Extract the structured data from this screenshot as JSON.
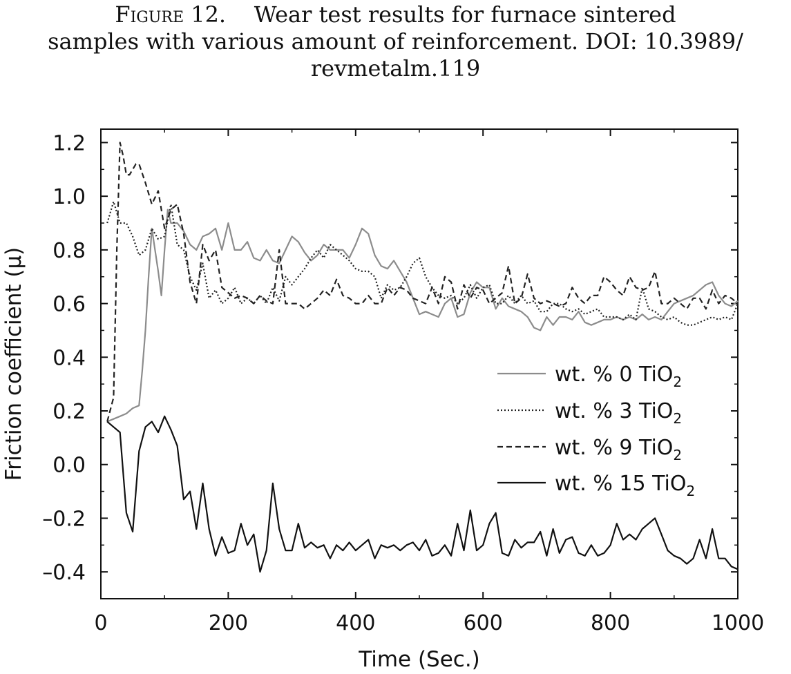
{
  "caption": {
    "label": "Figure 12.",
    "line1": "Wear test results for furnace sintered",
    "line2": "samples with various amount of reinforcement. DOI: 10.3989/",
    "line3": "revmetalm.119"
  },
  "chart_data": {
    "type": "line",
    "title": "",
    "xlabel": "Time (Sec.)",
    "ylabel": "Friction coefficient (µ)",
    "xlim": [
      0,
      1000
    ],
    "ylim": [
      -0.5,
      1.25
    ],
    "xticks": [
      0,
      200,
      400,
      600,
      800,
      1000
    ],
    "xtick_labels": [
      "0",
      "200",
      "400",
      "600",
      "800",
      "1000"
    ],
    "yticks": [
      -0.4,
      -0.2,
      0.0,
      0.2,
      0.4,
      0.6,
      0.8,
      1.0,
      1.2
    ],
    "ytick_labels": [
      "–0.4",
      "–0.2",
      "0.0",
      "0.2",
      "0.4",
      "0.6",
      "0.8",
      "1.0",
      "1.2"
    ],
    "grid": false,
    "legend_position": "center-right",
    "series": [
      {
        "legend_text": "wt. % 0 TiO",
        "legend_sub": "2",
        "color": "#8c8c8c",
        "dash": "solid",
        "x": [
          10,
          20,
          30,
          40,
          50,
          60,
          65,
          70,
          75,
          80,
          85,
          90,
          95,
          100,
          105,
          110,
          120,
          130,
          140,
          150,
          160,
          170,
          180,
          190,
          200,
          210,
          220,
          230,
          240,
          250,
          260,
          270,
          280,
          290,
          300,
          310,
          320,
          330,
          340,
          350,
          360,
          370,
          380,
          390,
          400,
          410,
          420,
          430,
          440,
          450,
          460,
          470,
          480,
          490,
          500,
          510,
          520,
          530,
          540,
          550,
          560,
          570,
          580,
          590,
          600,
          610,
          620,
          630,
          640,
          650,
          660,
          670,
          680,
          690,
          700,
          710,
          720,
          730,
          740,
          750,
          760,
          770,
          780,
          790,
          800,
          810,
          820,
          830,
          840,
          850,
          860,
          870,
          880,
          890,
          900,
          910,
          920,
          930,
          940,
          950,
          960,
          970,
          980,
          990,
          1000
        ],
        "y": [
          0.16,
          0.17,
          0.18,
          0.19,
          0.21,
          0.22,
          0.35,
          0.5,
          0.7,
          0.88,
          0.8,
          0.72,
          0.63,
          0.8,
          0.95,
          0.9,
          0.9,
          0.87,
          0.82,
          0.8,
          0.85,
          0.86,
          0.88,
          0.8,
          0.9,
          0.8,
          0.8,
          0.83,
          0.77,
          0.76,
          0.8,
          0.76,
          0.75,
          0.8,
          0.85,
          0.83,
          0.79,
          0.76,
          0.78,
          0.82,
          0.8,
          0.8,
          0.8,
          0.77,
          0.82,
          0.88,
          0.86,
          0.78,
          0.74,
          0.73,
          0.76,
          0.72,
          0.68,
          0.62,
          0.56,
          0.57,
          0.56,
          0.55,
          0.6,
          0.62,
          0.55,
          0.56,
          0.64,
          0.68,
          0.66,
          0.66,
          0.58,
          0.62,
          0.59,
          0.58,
          0.57,
          0.55,
          0.51,
          0.5,
          0.55,
          0.52,
          0.55,
          0.55,
          0.54,
          0.57,
          0.53,
          0.52,
          0.53,
          0.54,
          0.54,
          0.55,
          0.54,
          0.55,
          0.54,
          0.56,
          0.54,
          0.55,
          0.54,
          0.57,
          0.6,
          0.61,
          0.62,
          0.63,
          0.65,
          0.67,
          0.68,
          0.63,
          0.6,
          0.59,
          0.61
        ]
      },
      {
        "legend_text": "wt. % 3 TiO",
        "legend_sub": "2",
        "color": "#222222",
        "dash": "dotted",
        "x": [
          10,
          20,
          30,
          40,
          50,
          60,
          70,
          80,
          90,
          100,
          110,
          120,
          130,
          140,
          150,
          160,
          170,
          180,
          190,
          200,
          210,
          220,
          230,
          240,
          250,
          260,
          270,
          280,
          290,
          300,
          310,
          320,
          330,
          340,
          350,
          360,
          370,
          380,
          390,
          400,
          410,
          420,
          430,
          440,
          450,
          460,
          470,
          480,
          490,
          500,
          510,
          520,
          530,
          540,
          550,
          560,
          570,
          580,
          590,
          600,
          610,
          620,
          630,
          640,
          650,
          660,
          670,
          680,
          690,
          700,
          710,
          720,
          730,
          740,
          750,
          760,
          770,
          780,
          790,
          800,
          810,
          820,
          830,
          840,
          850,
          860,
          870,
          880,
          890,
          900,
          910,
          920,
          930,
          940,
          950,
          960,
          970,
          980,
          990,
          1000
        ],
        "y": [
          0.9,
          0.98,
          0.9,
          0.9,
          0.85,
          0.78,
          0.8,
          0.88,
          0.84,
          0.85,
          0.97,
          0.82,
          0.8,
          0.7,
          0.65,
          0.75,
          0.62,
          0.65,
          0.6,
          0.62,
          0.66,
          0.6,
          0.62,
          0.6,
          0.63,
          0.6,
          0.66,
          0.61,
          0.7,
          0.67,
          0.7,
          0.73,
          0.77,
          0.8,
          0.77,
          0.82,
          0.8,
          0.78,
          0.76,
          0.73,
          0.72,
          0.72,
          0.7,
          0.62,
          0.67,
          0.65,
          0.66,
          0.7,
          0.75,
          0.77,
          0.7,
          0.66,
          0.63,
          0.62,
          0.63,
          0.6,
          0.62,
          0.67,
          0.62,
          0.66,
          0.67,
          0.6,
          0.6,
          0.63,
          0.6,
          0.63,
          0.6,
          0.61,
          0.57,
          0.57,
          0.6,
          0.6,
          0.58,
          0.57,
          0.58,
          0.56,
          0.57,
          0.58,
          0.55,
          0.55,
          0.55,
          0.54,
          0.56,
          0.54,
          0.66,
          0.58,
          0.57,
          0.55,
          0.54,
          0.55,
          0.53,
          0.52,
          0.52,
          0.53,
          0.54,
          0.55,
          0.54,
          0.55,
          0.54,
          0.6
        ]
      },
      {
        "legend_text": "wt. % 9 TiO",
        "legend_sub": "2",
        "color": "#222222",
        "dash": "dashed",
        "x": [
          10,
          20,
          25,
          30,
          35,
          40,
          45,
          50,
          55,
          60,
          70,
          80,
          90,
          100,
          110,
          120,
          130,
          140,
          150,
          160,
          170,
          180,
          190,
          200,
          210,
          220,
          230,
          240,
          250,
          260,
          270,
          280,
          290,
          300,
          310,
          320,
          330,
          340,
          350,
          360,
          370,
          380,
          390,
          400,
          410,
          420,
          430,
          440,
          450,
          460,
          470,
          480,
          490,
          500,
          510,
          520,
          530,
          540,
          550,
          560,
          570,
          580,
          590,
          600,
          610,
          620,
          630,
          640,
          650,
          660,
          670,
          680,
          690,
          700,
          710,
          720,
          730,
          740,
          750,
          760,
          770,
          780,
          790,
          800,
          810,
          820,
          830,
          840,
          850,
          860,
          870,
          880,
          890,
          900,
          910,
          920,
          930,
          940,
          950,
          960,
          970,
          980,
          990,
          1000
        ],
        "y": [
          0.16,
          0.25,
          0.8,
          1.2,
          1.15,
          1.08,
          1.08,
          1.1,
          1.12,
          1.12,
          1.05,
          0.97,
          1.02,
          0.88,
          0.95,
          0.97,
          0.86,
          0.68,
          0.6,
          0.82,
          0.76,
          0.8,
          0.66,
          0.64,
          0.62,
          0.63,
          0.62,
          0.6,
          0.63,
          0.61,
          0.6,
          0.8,
          0.6,
          0.6,
          0.6,
          0.58,
          0.6,
          0.62,
          0.65,
          0.63,
          0.69,
          0.63,
          0.62,
          0.6,
          0.6,
          0.63,
          0.6,
          0.6,
          0.66,
          0.63,
          0.66,
          0.65,
          0.62,
          0.61,
          0.6,
          0.66,
          0.6,
          0.7,
          0.68,
          0.58,
          0.67,
          0.62,
          0.66,
          0.65,
          0.6,
          0.62,
          0.64,
          0.74,
          0.6,
          0.62,
          0.71,
          0.62,
          0.6,
          0.61,
          0.6,
          0.59,
          0.6,
          0.66,
          0.62,
          0.6,
          0.63,
          0.63,
          0.7,
          0.68,
          0.65,
          0.63,
          0.7,
          0.66,
          0.65,
          0.66,
          0.72,
          0.6,
          0.6,
          0.62,
          0.6,
          0.58,
          0.62,
          0.62,
          0.58,
          0.65,
          0.6,
          0.63,
          0.62,
          0.6
        ]
      },
      {
        "legend_text": "wt. % 15 TiO",
        "legend_sub": "2",
        "color": "#111111",
        "dash": "solid",
        "x": [
          10,
          20,
          30,
          40,
          50,
          60,
          70,
          80,
          90,
          100,
          110,
          120,
          130,
          140,
          150,
          160,
          170,
          180,
          190,
          200,
          210,
          220,
          230,
          240,
          250,
          260,
          270,
          280,
          290,
          300,
          310,
          320,
          330,
          340,
          350,
          360,
          370,
          380,
          390,
          400,
          410,
          420,
          430,
          440,
          450,
          460,
          470,
          480,
          490,
          500,
          510,
          520,
          530,
          540,
          550,
          560,
          570,
          580,
          590,
          600,
          610,
          620,
          630,
          640,
          650,
          660,
          670,
          680,
          690,
          700,
          710,
          720,
          730,
          740,
          750,
          760,
          770,
          780,
          790,
          800,
          810,
          820,
          830,
          840,
          850,
          860,
          870,
          880,
          890,
          900,
          910,
          920,
          930,
          940,
          950,
          960,
          970,
          980,
          990,
          1000
        ],
        "y": [
          0.16,
          0.14,
          0.12,
          -0.18,
          -0.25,
          0.05,
          0.14,
          0.16,
          0.12,
          0.18,
          0.13,
          0.07,
          -0.13,
          -0.1,
          -0.24,
          -0.07,
          -0.24,
          -0.34,
          -0.27,
          -0.33,
          -0.32,
          -0.22,
          -0.3,
          -0.26,
          -0.4,
          -0.32,
          -0.07,
          -0.24,
          -0.32,
          -0.32,
          -0.22,
          -0.31,
          -0.29,
          -0.31,
          -0.3,
          -0.35,
          -0.3,
          -0.32,
          -0.29,
          -0.32,
          -0.3,
          -0.28,
          -0.35,
          -0.3,
          -0.31,
          -0.3,
          -0.32,
          -0.3,
          -0.29,
          -0.32,
          -0.28,
          -0.34,
          -0.33,
          -0.3,
          -0.34,
          -0.22,
          -0.32,
          -0.17,
          -0.32,
          -0.3,
          -0.22,
          -0.18,
          -0.33,
          -0.34,
          -0.28,
          -0.31,
          -0.29,
          -0.29,
          -0.25,
          -0.34,
          -0.24,
          -0.33,
          -0.28,
          -0.27,
          -0.33,
          -0.34,
          -0.3,
          -0.34,
          -0.33,
          -0.3,
          -0.22,
          -0.28,
          -0.26,
          -0.28,
          -0.24,
          -0.22,
          -0.2,
          -0.26,
          -0.32,
          -0.34,
          -0.35,
          -0.37,
          -0.35,
          -0.28,
          -0.35,
          -0.24,
          -0.35,
          -0.35,
          -0.38,
          -0.39
        ]
      }
    ]
  }
}
